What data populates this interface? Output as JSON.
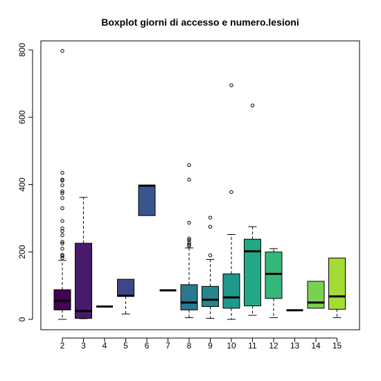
{
  "chart_data": {
    "type": "boxplot",
    "title": "Boxplot giorni di accesso e numero.lesioni",
    "xlabel": "",
    "ylabel": "",
    "categories": [
      "2",
      "3",
      "4",
      "5",
      "6",
      "7",
      "8",
      "9",
      "10",
      "11",
      "12",
      "13",
      "14",
      "15"
    ],
    "ylim": [
      -30,
      830
    ],
    "yticks": [
      0,
      200,
      400,
      600,
      800
    ],
    "grid": false,
    "legend": "none",
    "boxes": [
      {
        "category": "2",
        "min": 0,
        "q1": 28,
        "median": 55,
        "q3": 88,
        "max": 175,
        "color": "#440154",
        "outliers": [
          182,
          188,
          192,
          210,
          225,
          230,
          250,
          262,
          270,
          292,
          330,
          360,
          375,
          380,
          398,
          412,
          415,
          435,
          797
        ]
      },
      {
        "category": "3",
        "min": 2,
        "q1": 3,
        "median": 25,
        "q3": 226,
        "max": 362,
        "color": "#481A6C",
        "outliers": []
      },
      {
        "category": "4",
        "min": 38,
        "q1": 38,
        "median": 38,
        "q3": 38,
        "max": 38,
        "color": "#472F7D",
        "outliers": []
      },
      {
        "category": "5",
        "min": 16,
        "q1": 68,
        "median": 70,
        "q3": 119,
        "max": 119,
        "color": "#414487",
        "outliers": []
      },
      {
        "category": "6",
        "min": 308,
        "q1": 308,
        "median": 397,
        "q3": 397,
        "max": 397,
        "color": "#39568C",
        "outliers": []
      },
      {
        "category": "7",
        "min": 86,
        "q1": 86,
        "median": 86,
        "q3": 86,
        "max": 86,
        "color": "#31688E",
        "outliers": []
      },
      {
        "category": "8",
        "min": 5,
        "q1": 28,
        "median": 50,
        "q3": 103,
        "max": 212,
        "color": "#2A788E",
        "outliers": [
          218,
          222,
          228,
          235,
          240,
          287,
          415,
          458
        ]
      },
      {
        "category": "9",
        "min": 3,
        "q1": 38,
        "median": 58,
        "q3": 98,
        "max": 178,
        "color": "#23888E",
        "outliers": [
          190,
          275,
          302
        ]
      },
      {
        "category": "10",
        "min": 0,
        "q1": 33,
        "median": 65,
        "q3": 135,
        "max": 252,
        "color": "#1F988B",
        "outliers": [
          378,
          695
        ]
      },
      {
        "category": "11",
        "min": 12,
        "q1": 40,
        "median": 202,
        "q3": 238,
        "max": 275,
        "color": "#22A884",
        "outliers": [
          635
        ]
      },
      {
        "category": "12",
        "min": 5,
        "q1": 62,
        "median": 135,
        "q3": 200,
        "max": 210,
        "color": "#35B779",
        "outliers": []
      },
      {
        "category": "13",
        "min": 27,
        "q1": 27,
        "median": 27,
        "q3": 27,
        "max": 27,
        "color": "#54C568",
        "outliers": []
      },
      {
        "category": "14",
        "min": 33,
        "q1": 33,
        "median": 50,
        "q3": 113,
        "max": 113,
        "color": "#7AD151",
        "outliers": []
      },
      {
        "category": "15",
        "min": 5,
        "q1": 30,
        "median": 68,
        "q3": 182,
        "max": 182,
        "color": "#A5DB36",
        "outliers": []
      }
    ]
  }
}
